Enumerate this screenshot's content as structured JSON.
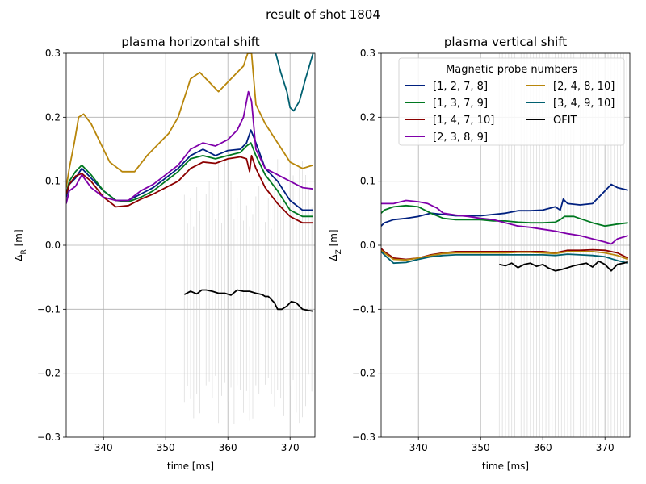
{
  "figure_title": "result of shot 1804",
  "chart_data": [
    {
      "type": "line",
      "title": "plasma horizontal shift",
      "xlabel": "time [ms]",
      "ylabel_main": "Δ",
      "ylabel_sub": "R",
      "ylabel_unit": " [m]",
      "xlim": [
        334,
        374
      ],
      "ylim": [
        -0.3,
        0.3
      ],
      "xticks": [
        340,
        350,
        360,
        370
      ],
      "xtick_labels": [
        "340",
        "350",
        "360",
        "370"
      ],
      "yticks": [
        -0.3,
        -0.2,
        -0.1,
        0.0,
        0.1,
        0.2,
        0.3
      ],
      "ytick_labels": [
        "−0.3",
        "−0.2",
        "−0.1",
        "0.0",
        "0.1",
        "0.2",
        "0.3"
      ],
      "grid": true,
      "series": [
        {
          "color": "#00207f",
          "x": [
            334,
            334.5,
            335.5,
            336.5,
            338,
            340,
            342,
            344,
            346,
            348,
            350,
            352,
            354,
            356,
            358,
            360,
            362,
            363,
            363.7,
            364.5,
            366,
            368,
            370,
            372,
            373.7
          ],
          "y": [
            0.075,
            0.095,
            0.105,
            0.12,
            0.105,
            0.085,
            0.07,
            0.07,
            0.08,
            0.09,
            0.105,
            0.12,
            0.14,
            0.15,
            0.14,
            0.148,
            0.15,
            0.16,
            0.18,
            0.16,
            0.12,
            0.1,
            0.07,
            0.055,
            0.055
          ]
        },
        {
          "color": "#007820",
          "x": [
            334,
            334.5,
            335.5,
            336.5,
            338,
            340,
            342,
            344,
            346,
            348,
            350,
            352,
            354,
            356,
            358,
            360,
            362,
            363,
            363.7,
            364.5,
            366,
            368,
            370,
            372,
            373.7
          ],
          "y": [
            0.08,
            0.1,
            0.115,
            0.125,
            0.11,
            0.085,
            0.07,
            0.068,
            0.075,
            0.085,
            0.1,
            0.115,
            0.135,
            0.14,
            0.135,
            0.14,
            0.145,
            0.155,
            0.16,
            0.14,
            0.11,
            0.085,
            0.055,
            0.045,
            0.045
          ]
        },
        {
          "color": "#8b0000",
          "x": [
            334,
            334.5,
            335.5,
            336.5,
            338,
            340,
            342,
            344,
            346,
            348,
            350,
            352,
            354,
            356,
            358,
            360,
            362,
            363,
            363.5,
            363.8,
            364.5,
            366,
            368,
            370,
            372,
            373.7
          ],
          "y": [
            0.08,
            0.095,
            0.108,
            0.112,
            0.1,
            0.075,
            0.06,
            0.062,
            0.072,
            0.08,
            0.09,
            0.1,
            0.12,
            0.13,
            0.128,
            0.135,
            0.138,
            0.135,
            0.115,
            0.14,
            0.12,
            0.09,
            0.065,
            0.045,
            0.035,
            0.035
          ]
        },
        {
          "color": "#7f00aa",
          "x": [
            334,
            334.5,
            335.5,
            336.5,
            338,
            340,
            342,
            344,
            346,
            348,
            350,
            352,
            354,
            356,
            358,
            360,
            361.5,
            362.5,
            363.3,
            363.8,
            364.5,
            366,
            368,
            370,
            372,
            373.7
          ],
          "y": [
            0.065,
            0.085,
            0.092,
            0.11,
            0.09,
            0.075,
            0.07,
            0.07,
            0.085,
            0.095,
            0.11,
            0.125,
            0.15,
            0.16,
            0.155,
            0.165,
            0.18,
            0.2,
            0.24,
            0.225,
            0.15,
            0.12,
            0.11,
            0.1,
            0.09,
            0.088
          ]
        },
        {
          "color": "#b8860b",
          "x": [
            334,
            334.5,
            335.3,
            336,
            336.8,
            338,
            339.5,
            341,
            343,
            345,
            347,
            349,
            350.5,
            352,
            353,
            354,
            355.5,
            357,
            358.5,
            360,
            361.5,
            362.5,
            363.2,
            363.8,
            364.5,
            366,
            368,
            370,
            372,
            373.7
          ],
          "y": [
            0.09,
            0.12,
            0.16,
            0.2,
            0.205,
            0.19,
            0.16,
            0.13,
            0.115,
            0.115,
            0.14,
            0.16,
            0.175,
            0.2,
            0.23,
            0.26,
            0.27,
            0.255,
            0.24,
            0.255,
            0.27,
            0.28,
            0.3,
            0.3,
            0.22,
            0.19,
            0.16,
            0.13,
            0.12,
            0.125
          ]
        },
        {
          "color": "#006070",
          "x": [
            367.7,
            368.5,
            369.5,
            370,
            370.6,
            371.5,
            372.5,
            373.7
          ],
          "y": [
            0.3,
            0.27,
            0.24,
            0.215,
            0.21,
            0.225,
            0.26,
            0.3
          ]
        },
        {
          "color": "#000000",
          "x": [
            353,
            354,
            355,
            355.8,
            356.5,
            357.5,
            358.5,
            359.5,
            360.5,
            361.5,
            362.5,
            363.5,
            364.5,
            365.5,
            366,
            366.5,
            367.5,
            368,
            368.7,
            369.5,
            370.2,
            371,
            372,
            373,
            373.7
          ],
          "y": [
            -0.077,
            -0.072,
            -0.076,
            -0.07,
            -0.07,
            -0.072,
            -0.075,
            -0.075,
            -0.078,
            -0.07,
            -0.072,
            -0.072,
            -0.075,
            -0.077,
            -0.08,
            -0.08,
            -0.09,
            -0.1,
            -0.1,
            -0.095,
            -0.088,
            -0.09,
            -0.1,
            -0.102,
            -0.103
          ]
        }
      ]
    },
    {
      "type": "line",
      "title": "plasma vertical shift",
      "xlabel": "time [ms]",
      "ylabel_main": "Δ",
      "ylabel_sub": "Z",
      "ylabel_unit": " [m]",
      "xlim": [
        334,
        374
      ],
      "ylim": [
        -0.3,
        0.3
      ],
      "xticks": [
        340,
        350,
        360,
        370
      ],
      "xtick_labels": [
        "340",
        "350",
        "360",
        "370"
      ],
      "yticks": [
        -0.3,
        -0.2,
        -0.1,
        0.0,
        0.1,
        0.2,
        0.3
      ],
      "ytick_labels": [
        "−0.3",
        "−0.2",
        "−0.1",
        "0.0",
        "0.1",
        "0.2",
        "0.3"
      ],
      "grid": true,
      "series": [
        {
          "color": "#00207f",
          "x": [
            334,
            334.5,
            336,
            338,
            340,
            342,
            344,
            346,
            348,
            350,
            352,
            354,
            356,
            358,
            360,
            362,
            362.8,
            363.3,
            364,
            366,
            368,
            369,
            370,
            371,
            372,
            373.7
          ],
          "y": [
            0.03,
            0.035,
            0.04,
            0.042,
            0.045,
            0.05,
            0.048,
            0.046,
            0.046,
            0.046,
            0.048,
            0.05,
            0.054,
            0.054,
            0.055,
            0.06,
            0.055,
            0.072,
            0.065,
            0.063,
            0.065,
            0.075,
            0.085,
            0.095,
            0.09,
            0.086
          ]
        },
        {
          "color": "#007820",
          "x": [
            334,
            334.5,
            336,
            338,
            340,
            342,
            344,
            346,
            348,
            350,
            352,
            354,
            356,
            358,
            360,
            362,
            362.8,
            363.5,
            365,
            366.5,
            368,
            370,
            372,
            373.7
          ],
          "y": [
            0.05,
            0.055,
            0.06,
            0.062,
            0.06,
            0.05,
            0.042,
            0.04,
            0.04,
            0.04,
            0.038,
            0.038,
            0.036,
            0.035,
            0.035,
            0.036,
            0.04,
            0.045,
            0.045,
            0.04,
            0.035,
            0.03,
            0.033,
            0.035
          ]
        },
        {
          "color": "#8b0000",
          "x": [
            334,
            334.5,
            336,
            338,
            340,
            342,
            344,
            346,
            348,
            350,
            352,
            354,
            356,
            358,
            360,
            362,
            364,
            366,
            368,
            370,
            372,
            373.7
          ],
          "y": [
            -0.005,
            -0.01,
            -0.02,
            -0.022,
            -0.02,
            -0.015,
            -0.012,
            -0.01,
            -0.01,
            -0.01,
            -0.01,
            -0.01,
            -0.01,
            -0.01,
            -0.01,
            -0.012,
            -0.008,
            -0.008,
            -0.007,
            -0.008,
            -0.012,
            -0.02
          ]
        },
        {
          "color": "#7f00aa",
          "x": [
            334,
            334.5,
            336,
            338,
            340,
            341.5,
            343,
            344,
            346,
            348,
            350,
            352,
            354,
            356,
            358,
            360,
            362,
            364,
            366,
            368,
            370,
            371,
            372,
            373.7
          ],
          "y": [
            0.065,
            0.065,
            0.065,
            0.07,
            0.068,
            0.065,
            0.058,
            0.05,
            0.047,
            0.045,
            0.042,
            0.04,
            0.035,
            0.03,
            0.028,
            0.025,
            0.022,
            0.018,
            0.015,
            0.01,
            0.005,
            0.002,
            0.01,
            0.015
          ]
        },
        {
          "color": "#b8860b",
          "x": [
            334,
            334.5,
            336,
            338,
            340,
            342,
            344,
            346,
            348,
            350,
            352,
            354,
            356,
            358,
            360,
            362,
            364,
            366,
            368,
            370,
            372,
            373.7
          ],
          "y": [
            -0.008,
            -0.012,
            -0.022,
            -0.023,
            -0.02,
            -0.016,
            -0.013,
            -0.012,
            -0.012,
            -0.012,
            -0.012,
            -0.012,
            -0.011,
            -0.011,
            -0.012,
            -0.013,
            -0.01,
            -0.01,
            -0.01,
            -0.012,
            -0.016,
            -0.022
          ]
        },
        {
          "color": "#006070",
          "x": [
            334,
            334.5,
            336,
            338,
            340,
            342,
            344,
            346,
            348,
            350,
            352,
            354,
            356,
            358,
            360,
            362,
            364,
            366,
            368,
            370,
            372,
            373.7
          ],
          "y": [
            -0.01,
            -0.015,
            -0.028,
            -0.027,
            -0.022,
            -0.018,
            -0.016,
            -0.015,
            -0.015,
            -0.015,
            -0.015,
            -0.015,
            -0.015,
            -0.015,
            -0.015,
            -0.016,
            -0.014,
            -0.015,
            -0.016,
            -0.018,
            -0.024,
            -0.028
          ]
        },
        {
          "color": "#000000",
          "x": [
            353,
            354,
            355,
            356,
            357,
            358,
            359,
            360,
            361,
            362,
            363,
            364,
            365,
            366,
            367,
            368,
            369,
            370,
            371,
            372,
            373,
            373.7
          ],
          "y": [
            -0.03,
            -0.032,
            -0.028,
            -0.035,
            -0.03,
            -0.028,
            -0.033,
            -0.03,
            -0.036,
            -0.04,
            -0.038,
            -0.035,
            -0.032,
            -0.03,
            -0.028,
            -0.034,
            -0.025,
            -0.03,
            -0.04,
            -0.03,
            -0.028,
            -0.026
          ]
        }
      ],
      "legend": {
        "title": "Magnetic probe numbers",
        "placement": "top-right",
        "entries": [
          {
            "label": "[1, 2, 7, 8]",
            "color": "#00207f"
          },
          {
            "label": "[1, 3, 7, 9]",
            "color": "#007820"
          },
          {
            "label": "[1, 4, 7, 10]",
            "color": "#8b0000"
          },
          {
            "label": "[2, 3, 8, 9]",
            "color": "#7f00aa"
          },
          {
            "label": "[2, 4, 8, 10]",
            "color": "#b8860b"
          },
          {
            "label": "[3, 4, 9, 10]",
            "color": "#006070"
          },
          {
            "label": "OFIT",
            "color": "#000000"
          }
        ]
      }
    }
  ]
}
